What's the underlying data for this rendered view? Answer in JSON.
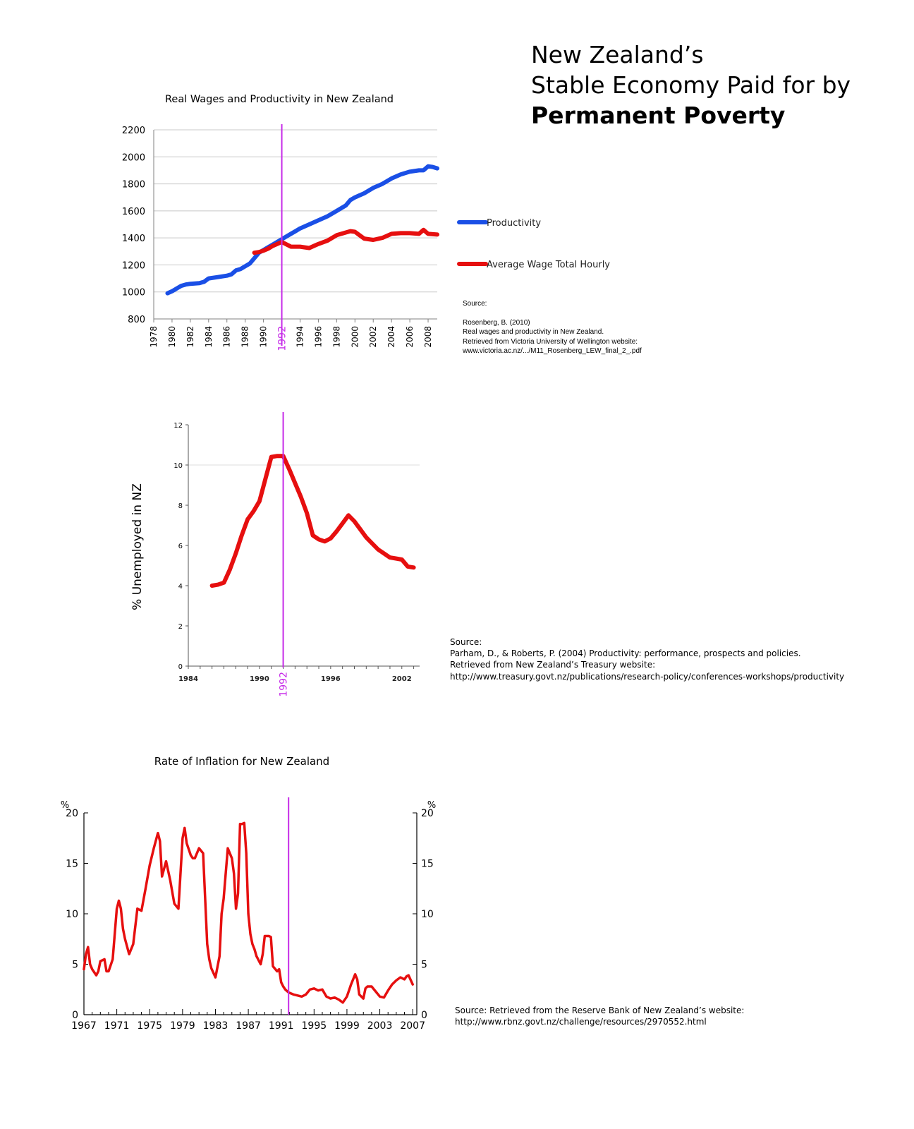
{
  "headline": {
    "line1": "New Zealand’s",
    "line2": "Stable Economy Paid for by",
    "line3": "Permanent Poverty"
  },
  "sources": {
    "wages": {
      "label": "Source:",
      "lines": [
        "Rosenberg, B. (2010)",
        "Real wages and productivity in New Zealand.",
        "Retrieved from Victoria University of Wellington website:",
        "www.victoria.ac.nz/.../M11_Rosenberg_LEW_final_2_.pdf"
      ]
    },
    "unemployment": {
      "label": "Source:",
      "lines": [
        "Parham, D., & Roberts, P. (2004) Productivity: performance, prospects and policies.",
        "Retrieved from New Zealand’s Treasury website:",
        "http://www.treasury.govt.nz/publications/research-policy/conferences-workshops/productivity"
      ]
    },
    "inflation": {
      "lines": [
        "Source: Retrieved from the Reserve Bank of New Zealand’s website:",
        "http://www.rbnz.govt.nz/challenge/resources/2970552.html"
      ]
    }
  },
  "colors": {
    "productivity": "#1a4fe6",
    "wage": "#e60f0f",
    "marker": "#c62ce8",
    "grid": "#c8c8c8",
    "axis": "#808080"
  },
  "chart_data": [
    {
      "type": "line",
      "title": "Real Wages and Productivity in New Zealand",
      "xlabel": "",
      "ylabel": "",
      "xlim": [
        1978,
        2009
      ],
      "ylim": [
        800,
        2200
      ],
      "x_ticks": [
        "1978",
        "1980",
        "1982",
        "1984",
        "1986",
        "1988",
        "1990",
        "1992",
        "1994",
        "1996",
        "1998",
        "2000",
        "2002",
        "2004",
        "2006",
        "2008"
      ],
      "y_ticks": [
        "800",
        "1000",
        "1200",
        "1400",
        "1600",
        "1800",
        "2000",
        "2200"
      ],
      "grid": true,
      "legend": "right",
      "marker": {
        "x": 1992,
        "label": "1992"
      },
      "series": [
        {
          "name": "Productivity",
          "x": [
            1979.5,
            1980,
            1980.5,
            1981,
            1981.5,
            1982,
            1983,
            1983.5,
            1984,
            1985,
            1986,
            1986.5,
            1987,
            1987.5,
            1988,
            1988.5,
            1989,
            1989.5,
            1990,
            1990.5,
            1991,
            1991.5,
            1992,
            1992.5,
            1993,
            1993.5,
            1994,
            1995,
            1996,
            1997,
            1998,
            1999,
            1999.5,
            2000,
            2001,
            2002,
            2003,
            2004,
            2005,
            2006,
            2007,
            2007.5,
            2008,
            2008.5,
            2009
          ],
          "y": [
            990,
            1005,
            1025,
            1045,
            1055,
            1060,
            1065,
            1075,
            1100,
            1110,
            1120,
            1130,
            1160,
            1170,
            1190,
            1210,
            1250,
            1290,
            1310,
            1330,
            1350,
            1370,
            1390,
            1410,
            1430,
            1450,
            1470,
            1500,
            1530,
            1560,
            1600,
            1640,
            1680,
            1700,
            1730,
            1770,
            1800,
            1840,
            1870,
            1890,
            1900,
            1900,
            1930,
            1925,
            1915
          ]
        },
        {
          "name": "Average Wage Total Hourly",
          "x": [
            1989,
            1989.5,
            1990,
            1990.5,
            1991,
            1991.5,
            1992,
            1993,
            1994,
            1995,
            1995.5,
            1996,
            1997,
            1998,
            1999,
            1999.5,
            2000,
            2001,
            2002,
            2003,
            2004,
            2005,
            2006,
            2007,
            2007.5,
            2008,
            2009
          ],
          "y": [
            1290,
            1295,
            1305,
            1320,
            1340,
            1355,
            1370,
            1335,
            1335,
            1325,
            1340,
            1355,
            1380,
            1420,
            1440,
            1450,
            1445,
            1395,
            1385,
            1400,
            1430,
            1435,
            1435,
            1430,
            1460,
            1430,
            1425
          ]
        }
      ]
    },
    {
      "type": "line",
      "title": "",
      "xlabel": "",
      "ylabel": "% Unemployed in NZ",
      "xlim": [
        1984,
        2003.5
      ],
      "ylim": [
        0,
        12
      ],
      "x_ticks": [
        "1984",
        "1990",
        "1996",
        "2002"
      ],
      "y_ticks": [
        "0",
        "2",
        "4",
        "6",
        "8",
        "10",
        "12"
      ],
      "grid": true,
      "marker": {
        "x": 1992,
        "label": "1992"
      },
      "series": [
        {
          "x": [
            1986,
            1986.5,
            1987,
            1987.5,
            1988,
            1988.5,
            1989,
            1989.5,
            1990,
            1990.5,
            1991,
            1991.5,
            1992,
            1992.5,
            1993,
            1993.5,
            1994,
            1994.5,
            1995,
            1995.5,
            1996,
            1996.5,
            1997,
            1997.5,
            1998,
            1998.5,
            1999,
            1999.5,
            2000,
            2000.5,
            2001,
            2001.5,
            2002,
            2002.5,
            2003
          ],
          "y": [
            4.0,
            4.05,
            4.15,
            4.8,
            5.6,
            6.5,
            7.3,
            7.7,
            8.2,
            9.3,
            10.4,
            10.45,
            10.45,
            9.8,
            9.1,
            8.4,
            7.6,
            6.5,
            6.3,
            6.2,
            6.35,
            6.7,
            7.1,
            7.5,
            7.2,
            6.8,
            6.4,
            6.1,
            5.8,
            5.6,
            5.4,
            5.35,
            5.3,
            4.95,
            4.9
          ]
        }
      ]
    },
    {
      "type": "line",
      "title": "Rate of Inflation for New Zealand",
      "xlabel": "",
      "ylabel": "%",
      "ylabel_right": "%",
      "xlim": [
        1967,
        2007.5
      ],
      "ylim": [
        0,
        20
      ],
      "x_ticks": [
        "1967",
        "1971",
        "1975",
        "1979",
        "1983",
        "1987",
        "1991",
        "1995",
        "1999",
        "2003",
        "2007"
      ],
      "y_ticks": [
        "0",
        "5",
        "10",
        "15",
        "20"
      ],
      "grid": false,
      "marker": {
        "x": 1991.9
      },
      "series": [
        {
          "x": [
            1967,
            1967.25,
            1967.5,
            1967.75,
            1968,
            1968.5,
            1968.75,
            1969,
            1969.5,
            1969.75,
            1970,
            1970.5,
            1971,
            1971.25,
            1971.5,
            1971.75,
            1972,
            1972.5,
            1973,
            1973.5,
            1974,
            1974.5,
            1975,
            1975.5,
            1976,
            1976.25,
            1976.5,
            1977,
            1977.5,
            1978,
            1978.5,
            1979,
            1979.25,
            1979.5,
            1980,
            1980.25,
            1980.5,
            1981,
            1981.5,
            1982,
            1982.25,
            1982.5,
            1983,
            1983.5,
            1983.75,
            1984,
            1984.5,
            1985,
            1985.25,
            1985.5,
            1985.75,
            1986,
            1986.25,
            1986.5,
            1986.75,
            1987,
            1987.25,
            1987.5,
            1987.75,
            1988,
            1988.5,
            1988.75,
            1989,
            1989.5,
            1989.75,
            1990,
            1990.5,
            1990.75,
            1991,
            1991.25,
            1991.5,
            1991.9,
            1992.5,
            1993,
            1993.5,
            1994,
            1994.5,
            1995,
            1995.5,
            1996,
            1996.5,
            1997,
            1997.5,
            1998,
            1998.5,
            1999,
            1999.5,
            2000,
            2000.25,
            2000.5,
            2001,
            2001.25,
            2001.5,
            2002,
            2002.5,
            2003,
            2003.5,
            2004,
            2004.5,
            2005,
            2005.5,
            2006,
            2006.25,
            2006.5,
            2007
          ],
          "y": [
            4.5,
            6.0,
            6.7,
            5.0,
            4.5,
            3.9,
            4.3,
            5.3,
            5.5,
            4.3,
            4.3,
            5.5,
            10.5,
            11.3,
            10.5,
            8.5,
            7.5,
            6.0,
            7.0,
            10.5,
            10.3,
            12.5,
            14.8,
            16.5,
            18.0,
            17.2,
            13.7,
            15.2,
            13.3,
            11.0,
            10.5,
            17.5,
            18.5,
            17.0,
            15.8,
            15.5,
            15.5,
            16.5,
            16.0,
            7.0,
            5.5,
            4.6,
            3.7,
            5.8,
            10.0,
            11.5,
            16.5,
            15.5,
            14.0,
            10.5,
            12.0,
            18.9,
            18.9,
            19.0,
            16.0,
            10.0,
            8.0,
            7.0,
            6.5,
            5.8,
            5.0,
            6.0,
            7.8,
            7.8,
            7.7,
            4.8,
            4.3,
            4.5,
            3.2,
            2.8,
            2.5,
            2.2,
            2.0,
            1.9,
            1.8,
            2.0,
            2.5,
            2.6,
            2.4,
            2.5,
            1.8,
            1.6,
            1.7,
            1.5,
            1.2,
            1.8,
            3.0,
            4.0,
            3.5,
            2.0,
            1.6,
            2.6,
            2.8,
            2.8,
            2.3,
            1.8,
            1.7,
            2.4,
            3.0,
            3.4,
            3.7,
            3.5,
            3.8,
            3.9,
            3.0
          ]
        }
      ]
    }
  ]
}
